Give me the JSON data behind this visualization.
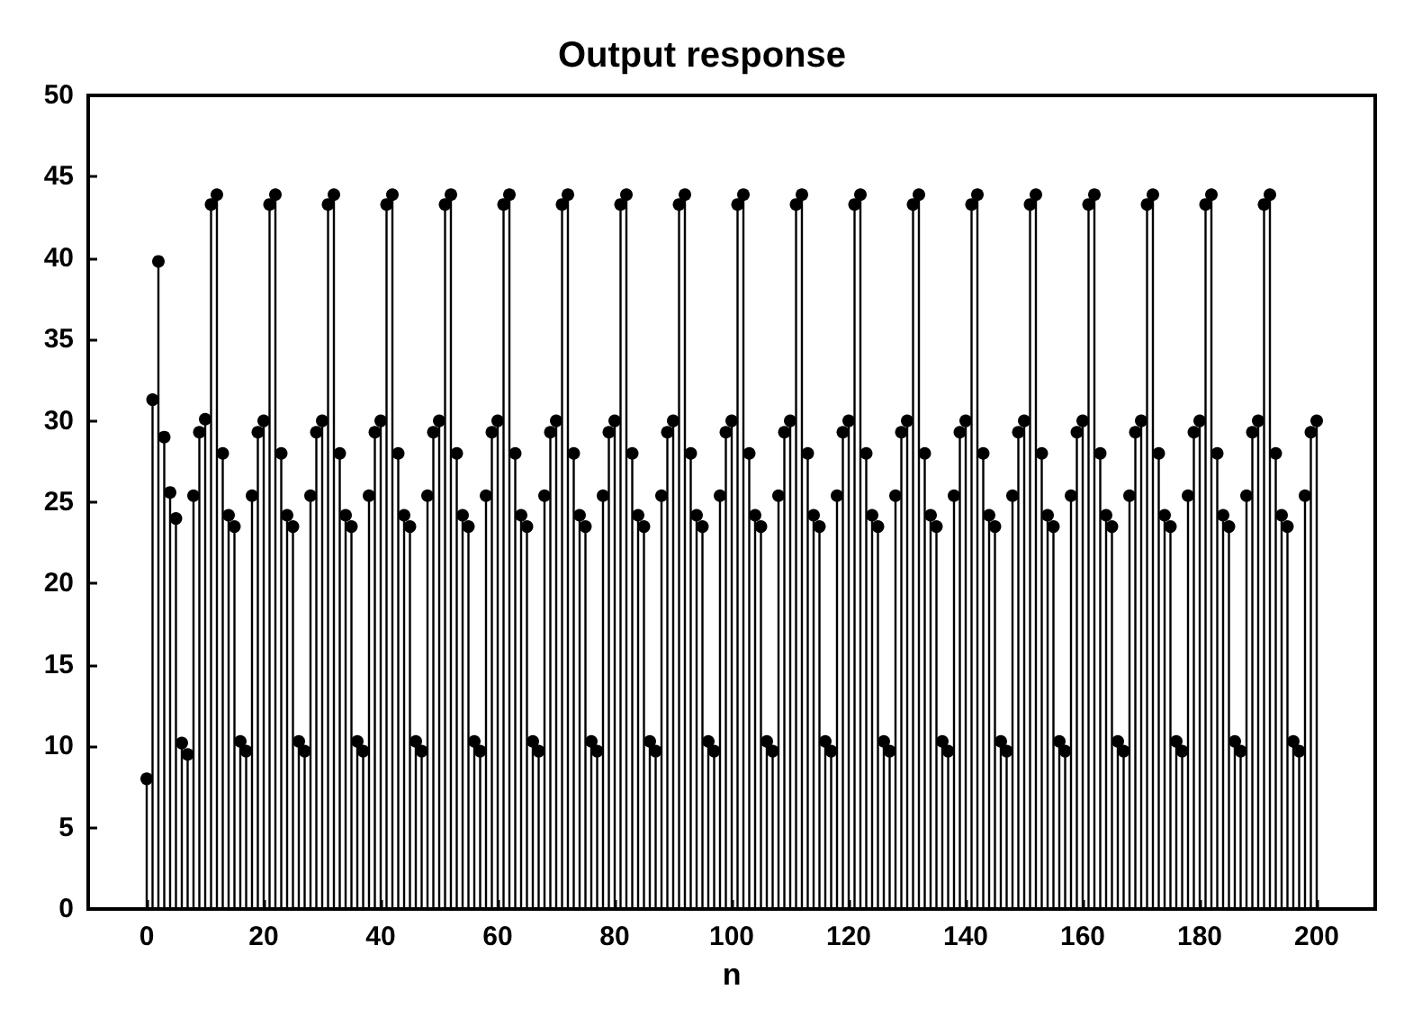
{
  "chart_data": {
    "type": "lollipop",
    "title": "Output response",
    "xlabel": "n",
    "color": "#000000",
    "marker": "circle",
    "x": [
      0,
      1,
      2,
      3,
      4,
      5,
      6,
      7,
      8,
      9,
      10,
      11,
      12,
      13,
      14,
      15,
      16,
      17,
      18,
      19,
      20,
      21,
      22,
      23,
      24,
      25,
      26,
      27,
      28,
      29,
      30,
      31,
      32,
      33,
      34,
      35,
      36,
      37,
      38,
      39,
      40,
      41,
      42,
      43,
      44,
      45,
      46,
      47,
      48,
      49,
      50,
      51,
      52,
      53,
      54,
      55,
      56,
      57,
      58,
      59,
      60,
      61,
      62,
      63,
      64,
      65,
      66,
      67,
      68,
      69,
      70,
      71,
      72,
      73,
      74,
      75,
      76,
      77,
      78,
      79,
      80,
      81,
      82,
      83,
      84,
      85,
      86,
      87,
      88,
      89,
      90,
      91,
      92,
      93,
      94,
      95,
      96,
      97,
      98,
      99,
      100,
      101,
      102,
      103,
      104,
      105,
      106,
      107,
      108,
      109,
      110,
      111,
      112,
      113,
      114,
      115,
      116,
      117,
      118,
      119,
      120,
      121,
      122,
      123,
      124,
      125,
      126,
      127,
      128,
      129,
      130,
      131,
      132,
      133,
      134,
      135,
      136,
      137,
      138,
      139,
      140,
      141,
      142,
      143,
      144,
      145,
      146,
      147,
      148,
      149,
      150,
      151,
      152,
      153,
      154,
      155,
      156,
      157,
      158,
      159,
      160,
      161,
      162,
      163,
      164,
      165,
      166,
      167,
      168,
      169,
      170,
      171,
      172,
      173,
      174,
      175,
      176,
      177,
      178,
      179,
      180,
      181,
      182,
      183,
      184,
      185,
      186,
      187,
      188,
      189,
      190,
      191,
      192,
      193,
      194,
      195,
      196,
      197,
      198,
      199,
      200
    ],
    "values": [
      8,
      31.3,
      39.8,
      29,
      25.6,
      24,
      10.2,
      9.5,
      25.4,
      29.3,
      30.1,
      43.3,
      43.9,
      28,
      24.2,
      23.5,
      10.3,
      9.7,
      25.4,
      29.3,
      30,
      43.3,
      43.9,
      28,
      24.2,
      23.5,
      10.3,
      9.7,
      25.4,
      29.3,
      30,
      43.3,
      43.9,
      28,
      24.2,
      23.5,
      10.3,
      9.7,
      25.4,
      29.3,
      30,
      43.3,
      43.9,
      28,
      24.2,
      23.5,
      10.3,
      9.7,
      25.4,
      29.3,
      30,
      43.3,
      43.9,
      28,
      24.2,
      23.5,
      10.3,
      9.7,
      25.4,
      29.3,
      30,
      43.3,
      43.9,
      28,
      24.2,
      23.5,
      10.3,
      9.7,
      25.4,
      29.3,
      30,
      43.3,
      43.9,
      28,
      24.2,
      23.5,
      10.3,
      9.7,
      25.4,
      29.3,
      30,
      43.3,
      43.9,
      28,
      24.2,
      23.5,
      10.3,
      9.7,
      25.4,
      29.3,
      30,
      43.3,
      43.9,
      28,
      24.2,
      23.5,
      10.3,
      9.7,
      25.4,
      29.3,
      30,
      43.3,
      43.9,
      28,
      24.2,
      23.5,
      10.3,
      9.7,
      25.4,
      29.3,
      30,
      43.3,
      43.9,
      28,
      24.2,
      23.5,
      10.3,
      9.7,
      25.4,
      29.3,
      30,
      43.3,
      43.9,
      28,
      24.2,
      23.5,
      10.3,
      9.7,
      25.4,
      29.3,
      30,
      43.3,
      43.9,
      28,
      24.2,
      23.5,
      10.3,
      9.7,
      25.4,
      29.3,
      30,
      43.3,
      43.9,
      28,
      24.2,
      23.5,
      10.3,
      9.7,
      25.4,
      29.3,
      30,
      43.3,
      43.9,
      28,
      24.2,
      23.5,
      10.3,
      9.7,
      25.4,
      29.3,
      30,
      43.3,
      43.9,
      28,
      24.2,
      23.5,
      10.3,
      9.7,
      25.4,
      29.3,
      30,
      43.3,
      43.9,
      28,
      24.2,
      23.5,
      10.3,
      9.7,
      25.4,
      29.3,
      30,
      43.3,
      43.9,
      28,
      24.2,
      23.5,
      10.3,
      9.7,
      25.4,
      29.3,
      30,
      43.3,
      43.9,
      28,
      24.2,
      23.5,
      10.3,
      9.7,
      25.4,
      29.3,
      30
    ],
    "xlim": [
      -10,
      210
    ],
    "xticks": [
      0,
      20,
      40,
      60,
      80,
      100,
      120,
      140,
      160,
      180,
      200
    ],
    "ylim": [
      0,
      50
    ],
    "yticks": [
      0,
      5,
      10,
      15,
      20,
      25,
      30,
      35,
      40,
      45,
      50
    ],
    "grid": false
  }
}
